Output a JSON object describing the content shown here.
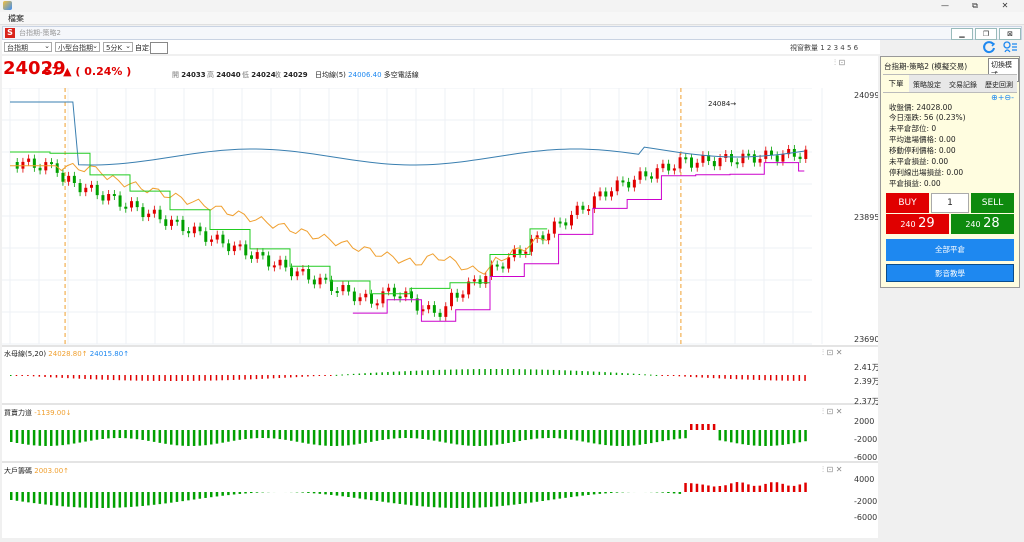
{
  "window": {
    "menu_label": "檔案",
    "inner_title": "台指期-策略2",
    "minimize": "—",
    "restore": "⧉",
    "close": "✕"
  },
  "toolbar": {
    "symbol": "台指期",
    "product": "小型台指期",
    "interval": "5分K",
    "custom_label": "自定:",
    "screens_label": "視窗數量 1 2 3 4 5 6"
  },
  "quote": {
    "price": "24029",
    "change": "57 ▲ ( 0.24% )",
    "open_label": "開",
    "open": "24033",
    "high_label": "高",
    "high": "24040",
    "low_label": "低",
    "low": "24024",
    "close_label": "收",
    "close": "24029",
    "ma_label": "日均線(5)",
    "ma_value": "24006.40",
    "ma_note": "多空電話線"
  },
  "main_chart": {
    "y_ticks": [
      "24099",
      "23895",
      "23690"
    ],
    "annotation": "24084",
    "dashed_lines_x_fraction": [
      0.072,
      0.775
    ]
  },
  "sub_charts": [
    {
      "title": "水母線(5,20)",
      "v1": "24028.80↑",
      "v2": "24015.80↑",
      "ticks": [
        "2.41万",
        "2.39万",
        "2.37万"
      ]
    },
    {
      "title": "買賣力道",
      "v1": "-1139.00↓",
      "ticks": [
        "2000",
        "-2000",
        "-6000"
      ]
    },
    {
      "title": "大戶籌碼",
      "v1": "2003.00↑",
      "ticks": [
        "4000",
        "-2000",
        "-6000"
      ]
    }
  ],
  "right_panel": {
    "header": "台指期-策略2 (模擬交易)",
    "mode_button": "切換模式",
    "tabs": [
      "下單",
      "策略設定",
      "交易記錄",
      "歷史回測"
    ],
    "lines": [
      "收盤價: 24028.00",
      "今日漲跌: 56 (0.23%)",
      "未平倉部位: 0",
      "平均進場價格: 0.00",
      "移動停利價格: 0.00",
      "未平倉損益: 0.00",
      "停利線出場損益: 0.00",
      "平倉損益: 0.00"
    ],
    "buy_label": "BUY",
    "qty": "1",
    "sell_label": "SELL",
    "bid_prefix": "240",
    "bid": "29",
    "ask_prefix": "240",
    "ask": "28",
    "close_all": "全部平倉",
    "tutorial": "影音教學"
  },
  "colors": {
    "up": "#e00000",
    "down": "#00a000",
    "blue_line": "#3a7fb0",
    "green_line": "#22cc22",
    "orange_line": "#f0a030",
    "magenta_line": "#cc00cc",
    "button_blue": "#1e88f0"
  }
}
